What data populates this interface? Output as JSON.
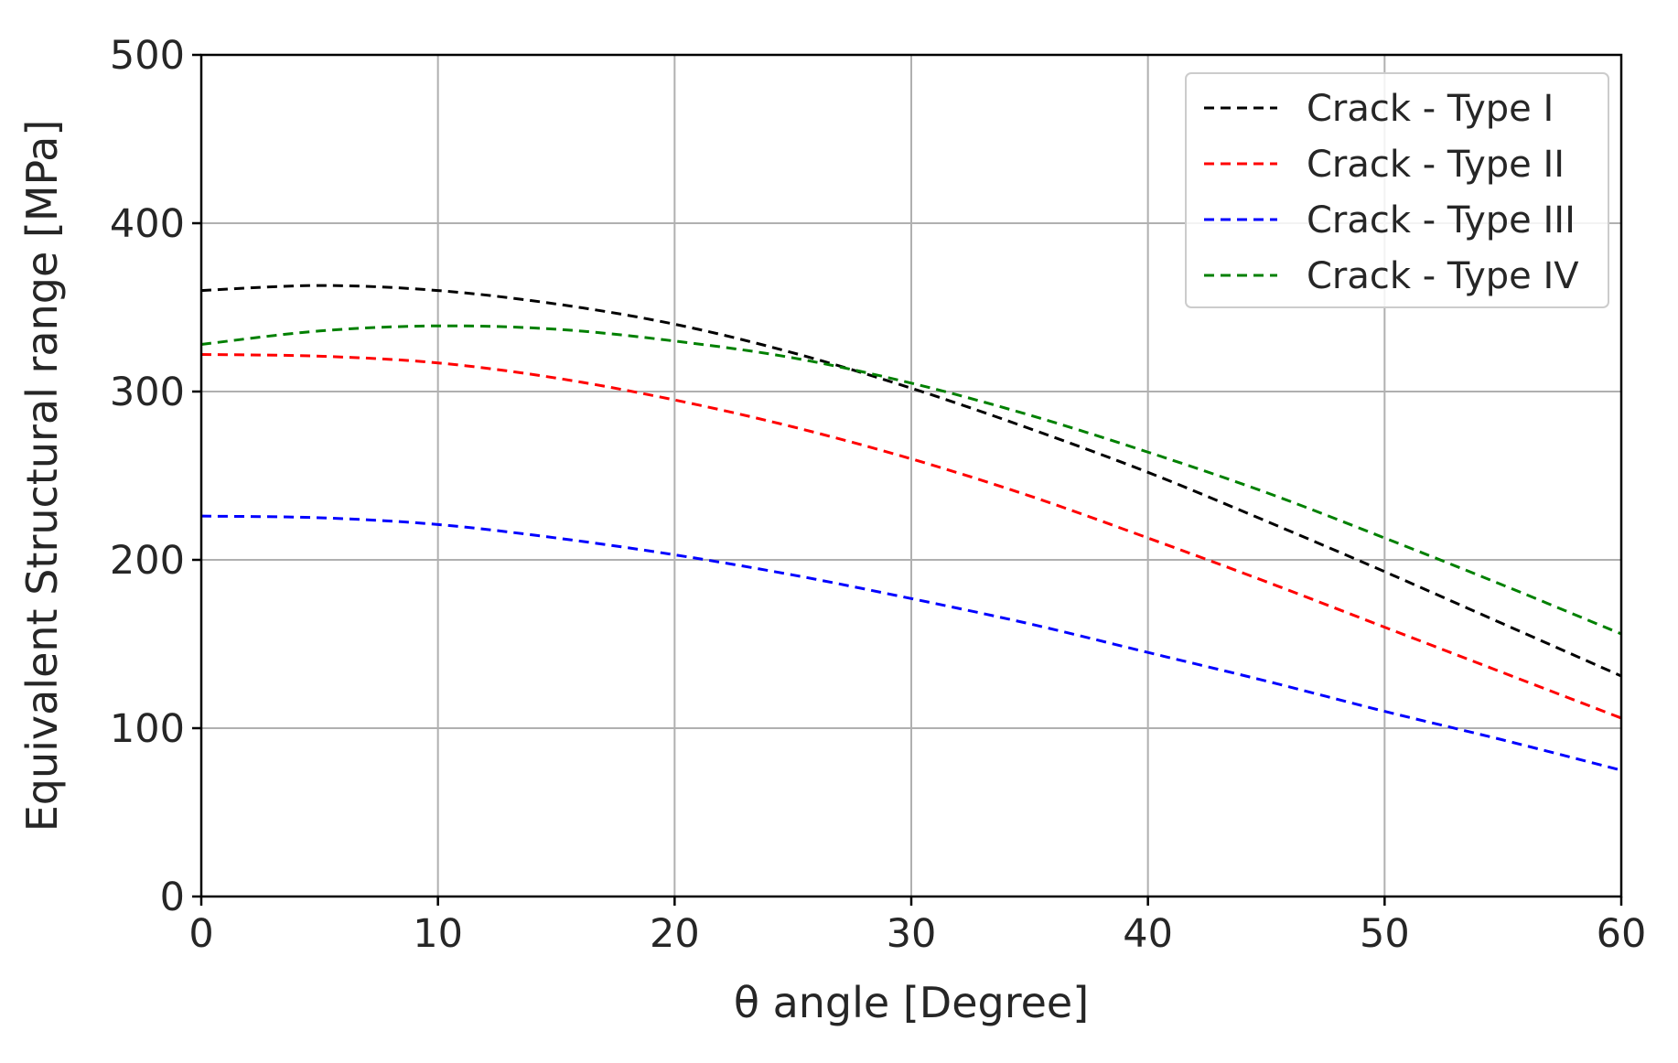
{
  "chart_data": {
    "type": "line",
    "title": "",
    "xlabel": "θ angle [Degree]",
    "ylabel": "Equivalent Structural range [MPa]",
    "xlim": [
      0,
      60
    ],
    "ylim": [
      0,
      500
    ],
    "xticks": [
      0,
      10,
      20,
      30,
      40,
      50,
      60
    ],
    "yticks": [
      0,
      100,
      200,
      300,
      400,
      500
    ],
    "grid": true,
    "legend_position": "top-right",
    "line_style": "dashed",
    "series": [
      {
        "name": "Crack - Type I",
        "color": "#000000",
        "x": [
          0,
          5,
          10,
          15,
          20,
          25,
          30,
          35,
          40,
          45,
          50,
          55,
          60
        ],
        "y": [
          360,
          363,
          360,
          352,
          340,
          323,
          302,
          278,
          252,
          223,
          193,
          162,
          131
        ]
      },
      {
        "name": "Crack - Type II",
        "color": "#ff0000",
        "x": [
          0,
          5,
          10,
          15,
          20,
          25,
          30,
          35,
          40,
          45,
          50,
          55,
          60
        ],
        "y": [
          322,
          321,
          317,
          308,
          295,
          279,
          260,
          238,
          213,
          187,
          160,
          133,
          106
        ]
      },
      {
        "name": "Crack - Type III",
        "color": "#0000ff",
        "x": [
          0,
          5,
          10,
          15,
          20,
          25,
          30,
          35,
          40,
          45,
          50,
          55,
          60
        ],
        "y": [
          226,
          225,
          221,
          213,
          203,
          191,
          177,
          162,
          145,
          128,
          110,
          93,
          75
        ]
      },
      {
        "name": "Crack - Type IV",
        "color": "#008000",
        "x": [
          0,
          5,
          10,
          15,
          20,
          25,
          30,
          35,
          40,
          45,
          50,
          55,
          60
        ],
        "y": [
          328,
          336,
          339,
          337,
          330,
          320,
          305,
          286,
          264,
          240,
          213,
          185,
          156
        ]
      }
    ]
  }
}
